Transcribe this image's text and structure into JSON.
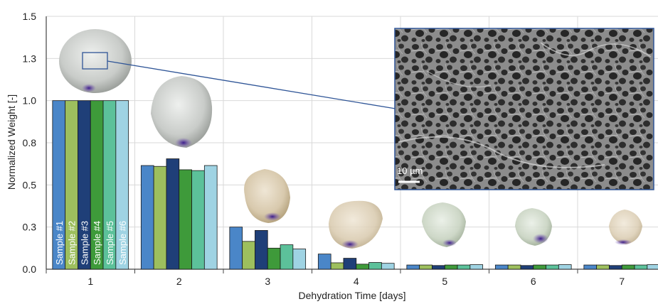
{
  "chart_data": {
    "type": "bar",
    "xlabel": "Dehydration Time [days]",
    "ylabel": "Normalized Weight [-]",
    "ylim": [
      0,
      1.5
    ],
    "yticks": [
      "0.0",
      "0.3",
      "0.5",
      "0.8",
      "1.0",
      "1.3",
      "1.5"
    ],
    "ytick_values": [
      0,
      0.25,
      0.5,
      0.75,
      1.0,
      1.25,
      1.5
    ],
    "categories": [
      "1",
      "2",
      "3",
      "4",
      "5",
      "6",
      "7"
    ],
    "grid": true,
    "series": [
      {
        "name": "Sample #1",
        "color": "#4a86c8",
        "values": [
          1.0,
          0.615,
          0.25,
          0.09,
          0.025,
          0.025,
          0.025
        ]
      },
      {
        "name": "Sample #2",
        "color": "#9dbf5e",
        "values": [
          1.0,
          0.61,
          0.165,
          0.038,
          0.025,
          0.025,
          0.025
        ]
      },
      {
        "name": "Sample #3",
        "color": "#1f3f78",
        "values": [
          1.0,
          0.655,
          0.23,
          0.065,
          0.022,
          0.022,
          0.022
        ]
      },
      {
        "name": "Sample #4",
        "color": "#3e9a3a",
        "values": [
          1.0,
          0.59,
          0.125,
          0.03,
          0.025,
          0.025,
          0.025
        ]
      },
      {
        "name": "Sample #5",
        "color": "#5cc19a",
        "values": [
          1.0,
          0.585,
          0.145,
          0.04,
          0.025,
          0.025,
          0.025
        ]
      },
      {
        "name": "Sample #6",
        "color": "#9fd3e3",
        "values": [
          1.0,
          0.615,
          0.12,
          0.035,
          0.027,
          0.027,
          0.027
        ]
      }
    ],
    "bar_labels_category": "1",
    "inset": {
      "scale_bar_label": "10 µm",
      "border_color": "#2f5597"
    }
  }
}
